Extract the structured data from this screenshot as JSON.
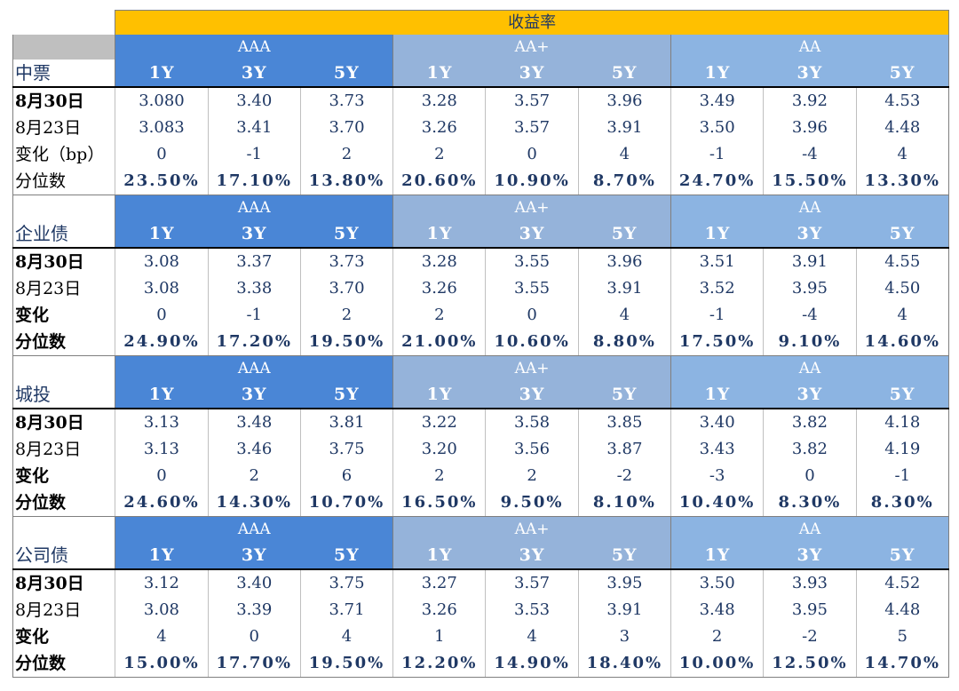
{
  "table_title": "收益率",
  "groups": [
    "AAA",
    "AA+",
    "AA"
  ],
  "terms": [
    "1Y",
    "3Y",
    "5Y"
  ],
  "sections": [
    {
      "name": "中票",
      "rows": [
        {
          "label": "8月30日",
          "label_bold": true,
          "values": [
            "3.080",
            "3.40",
            "3.73",
            "3.28",
            "3.57",
            "3.96",
            "3.49",
            "3.92",
            "4.53"
          ]
        },
        {
          "label": "8月23日",
          "label_bold": false,
          "values": [
            "3.083",
            "3.41",
            "3.70",
            "3.26",
            "3.57",
            "3.91",
            "3.50",
            "3.96",
            "4.48"
          ]
        },
        {
          "label": "变化（bp）",
          "label_bold": false,
          "values": [
            "0",
            "-1",
            "2",
            "2",
            "0",
            "4",
            "-1",
            "-4",
            "4"
          ]
        },
        {
          "label": "分位数",
          "label_bold": false,
          "values": [
            "23.50%",
            "17.10%",
            "13.80%",
            "20.60%",
            "10.90%",
            "8.70%",
            "24.70%",
            "15.50%",
            "13.30%"
          ]
        }
      ]
    },
    {
      "name": "企业债",
      "rows": [
        {
          "label": "8月30日",
          "label_bold": true,
          "values": [
            "3.08",
            "3.37",
            "3.73",
            "3.28",
            "3.55",
            "3.96",
            "3.51",
            "3.91",
            "4.55"
          ]
        },
        {
          "label": "8月23日",
          "label_bold": false,
          "values": [
            "3.08",
            "3.38",
            "3.70",
            "3.26",
            "3.55",
            "3.91",
            "3.52",
            "3.95",
            "4.50"
          ]
        },
        {
          "label": "变化",
          "label_bold": true,
          "values": [
            "0",
            "-1",
            "2",
            "2",
            "0",
            "4",
            "-1",
            "-4",
            "4"
          ]
        },
        {
          "label": "分位数",
          "label_bold": true,
          "values": [
            "24.90%",
            "17.20%",
            "19.50%",
            "21.00%",
            "10.60%",
            "8.80%",
            "17.50%",
            "9.10%",
            "14.60%"
          ]
        }
      ]
    },
    {
      "name": "城投",
      "rows": [
        {
          "label": "8月30日",
          "label_bold": true,
          "values": [
            "3.13",
            "3.48",
            "3.81",
            "3.22",
            "3.58",
            "3.85",
            "3.40",
            "3.82",
            "4.18"
          ]
        },
        {
          "label": "8月23日",
          "label_bold": false,
          "values": [
            "3.13",
            "3.46",
            "3.75",
            "3.20",
            "3.56",
            "3.87",
            "3.43",
            "3.82",
            "4.19"
          ]
        },
        {
          "label": "变化",
          "label_bold": true,
          "values": [
            "0",
            "2",
            "6",
            "2",
            "2",
            "-2",
            "-3",
            "0",
            "-1"
          ]
        },
        {
          "label": "分位数",
          "label_bold": true,
          "values": [
            "24.60%",
            "14.30%",
            "10.70%",
            "16.50%",
            "9.50%",
            "8.10%",
            "10.40%",
            "8.30%",
            "8.30%"
          ]
        }
      ]
    },
    {
      "name": "公司债",
      "rows": [
        {
          "label": "8月30日",
          "label_bold": true,
          "values": [
            "3.12",
            "3.40",
            "3.75",
            "3.27",
            "3.57",
            "3.95",
            "3.50",
            "3.93",
            "4.52"
          ]
        },
        {
          "label": "8月23日",
          "label_bold": false,
          "values": [
            "3.08",
            "3.39",
            "3.71",
            "3.26",
            "3.53",
            "3.91",
            "3.48",
            "3.95",
            "4.48"
          ]
        },
        {
          "label": "变化",
          "label_bold": true,
          "values": [
            "4",
            "0",
            "4",
            "1",
            "4",
            "3",
            "2",
            "-2",
            "5"
          ]
        },
        {
          "label": "分位数",
          "label_bold": true,
          "values": [
            "15.00%",
            "17.70%",
            "19.50%",
            "12.20%",
            "14.90%",
            "18.40%",
            "10.00%",
            "12.50%",
            "14.70%"
          ]
        }
      ]
    }
  ],
  "colors": {
    "title_bg": "#ffc000",
    "aaa_bg": "#4a86d6",
    "aa_plus_bg": "#95b3da",
    "aa_bg": "#8cb4e2",
    "value_text": "#1f3864",
    "header_text": "#ffffff"
  }
}
